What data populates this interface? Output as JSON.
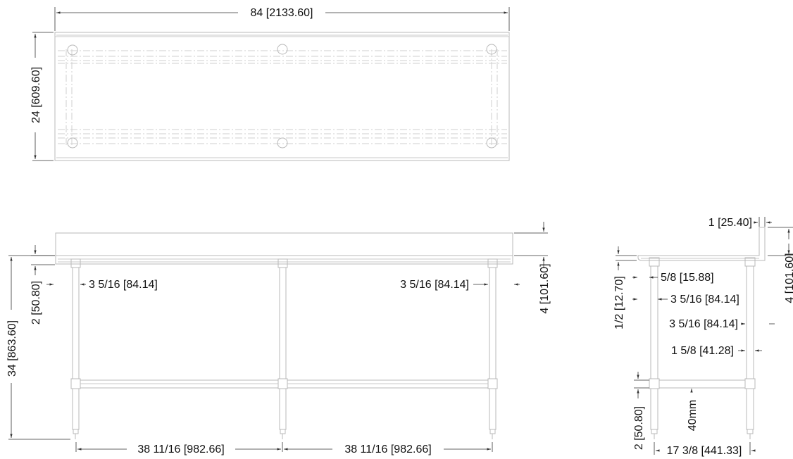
{
  "dimensions": {
    "top_length": "84 [2133.60]",
    "top_depth": "24 [609.60]",
    "overall_height": "34 [863.60]",
    "backsplash_height_front": "4 [101.60]",
    "edge_height_front": "2 [50.80]",
    "leg_offset_left": "3 5/16 [84.14]",
    "leg_offset_right": "3 5/16 [84.14]",
    "leg_spacing_left": "38 11/16 [982.66]",
    "leg_spacing_right": "38 11/16 [982.66]",
    "backsplash_thickness": "1 [25.40]",
    "backsplash_height_side": "4 [101.60]",
    "edge_half": "1/2 [12.70]",
    "edge_five_eighths": "5/8 [15.88]",
    "side_leg_offset_front": "3 5/16 [84.14]",
    "side_leg_offset_back": "3 5/16 [84.14]",
    "side_gap": "1 5/8 [41.28]",
    "undershelf_height": "2 [50.80]",
    "undershelf_mm": "40mm",
    "side_leg_spacing": "17 3/8 [441.33]"
  }
}
